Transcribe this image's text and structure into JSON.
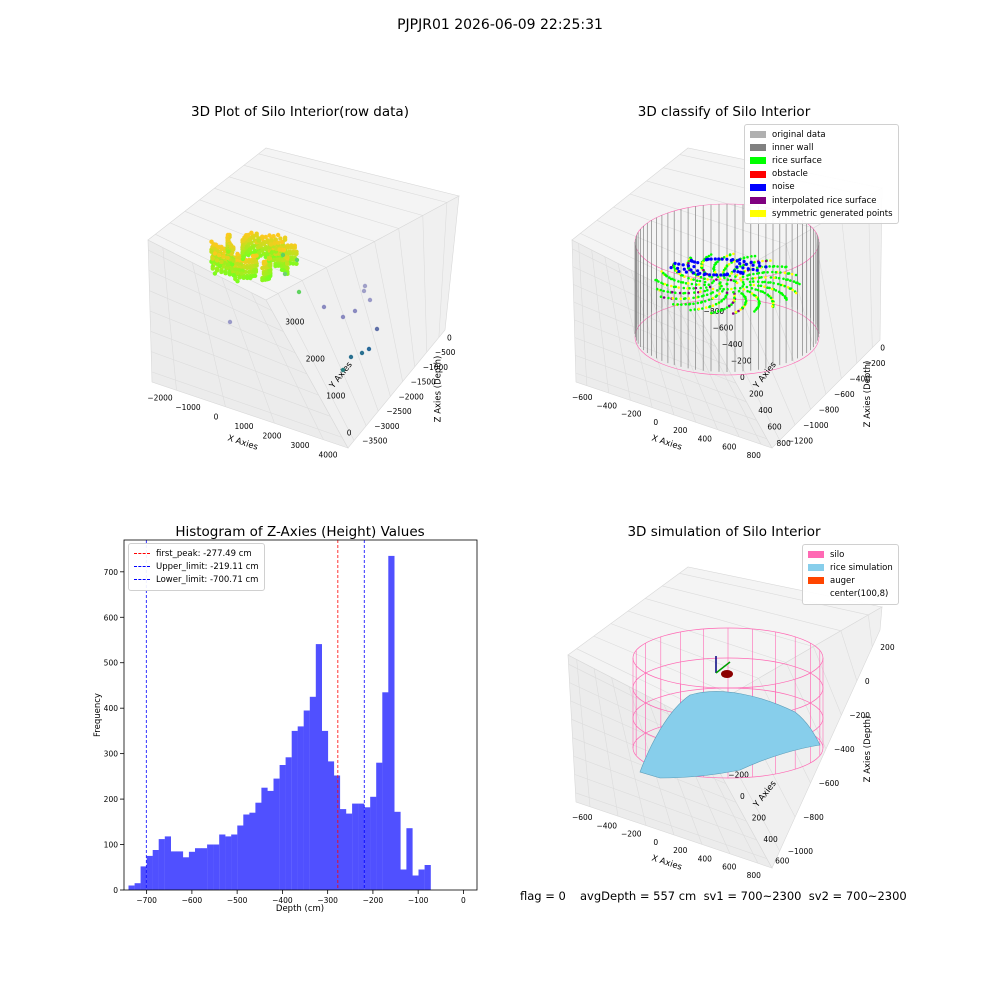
{
  "header": {
    "title": "PJPJR01 2026-06-09 22:25:31"
  },
  "colors": {
    "pane": "#f2f2f2",
    "grid": "#dcdcdc",
    "original": "#b0b0b0",
    "inner_wall": "#808080",
    "rice_surface": "#00ff00",
    "obstacle": "#ff0000",
    "noise": "#0000ff",
    "interpolated": "#800080",
    "symmetric": "#ffff00",
    "hist_bar": "#5050ff",
    "silo": "#ff69b4",
    "rice_sim": "#87ceeb",
    "auger": "#ff4500"
  },
  "plots": {
    "raw": {
      "title": "3D Plot of Silo Interior(row data)",
      "x_ticks": [
        "−2000",
        "−1000",
        "0",
        "1000",
        "2000",
        "3000",
        "4000"
      ],
      "y_ticks": [
        "0",
        "1000",
        "2000",
        "3000"
      ],
      "z_ticks": [
        "0",
        "−500",
        "−1000",
        "−1500",
        "−2000",
        "−2500",
        "−3000",
        "−3500"
      ],
      "xlabel": "X Axies",
      "ylabel": "Y Axies",
      "zlabel": "Z Axies (Depth)"
    },
    "classify": {
      "title": "3D classify of Silo Interior",
      "x_ticks": [
        "−600",
        "−400",
        "−200",
        "0",
        "200",
        "400",
        "600",
        "800"
      ],
      "y_ticks": [
        "800",
        "600",
        "400",
        "200",
        "0",
        "−200",
        "−400",
        "−600",
        "−800"
      ],
      "z_ticks": [
        "0",
        "−200",
        "−400",
        "−600",
        "−800",
        "−1000",
        "−1200"
      ],
      "xlabel": "X Axies",
      "ylabel": "Y Axies",
      "zlabel": "Z Axies (Depth)",
      "legend": [
        {
          "label": "original data",
          "color": "#b0b0b0"
        },
        {
          "label": "inner wall",
          "color": "#808080"
        },
        {
          "label": "rice surface",
          "color": "#00ff00"
        },
        {
          "label": "obstacle",
          "color": "#ff0000"
        },
        {
          "label": "noise",
          "color": "#0000ff"
        },
        {
          "label": "interpolated rice surface",
          "color": "#800080"
        },
        {
          "label": "symmetric generated points",
          "color": "#ffff00"
        }
      ]
    },
    "simulation": {
      "title": "3D simulation of Silo Interior",
      "x_ticks": [
        "−600",
        "−400",
        "−200",
        "0",
        "200",
        "400",
        "600",
        "800"
      ],
      "y_ticks": [
        "600",
        "400",
        "200",
        "0",
        "−200",
        "−400",
        "−600"
      ],
      "z_ticks": [
        "200",
        "0",
        "−200",
        "−400",
        "−600",
        "−800",
        "−1000"
      ],
      "xlabel": "X Axies",
      "ylabel": "Y Axies",
      "zlabel": "Z Axies (Depth)",
      "legend": [
        {
          "label": "silo",
          "color": "#ff69b4"
        },
        {
          "label": "rice simulation",
          "color": "#87ceeb"
        },
        {
          "label": "auger",
          "color": "#ff4500"
        },
        {
          "label": "center(100,8)",
          "color": "transparent"
        }
      ]
    }
  },
  "footer": {
    "flag": "flag = 0",
    "avg": "avgDepth = 557 cm  sv1 = 700~2300  sv2 = 700~2300"
  },
  "chart_data": {
    "type": "bar",
    "title": "Histogram of Z-Axies (Height) Values",
    "xlabel": "Depth (cm)",
    "ylabel": "Frequency",
    "xlim": [
      -750,
      30
    ],
    "ylim": [
      0,
      770
    ],
    "x_ticks": [
      -700,
      -600,
      -500,
      -400,
      -300,
      -200,
      -100,
      0
    ],
    "y_ticks": [
      0,
      100,
      200,
      300,
      400,
      500,
      600,
      700
    ],
    "bin_start": -740,
    "bin_width": 13.35,
    "values": [
      10,
      15,
      52,
      75,
      88,
      112,
      118,
      85,
      85,
      72,
      84,
      92,
      92,
      100,
      100,
      122,
      118,
      122,
      142,
      166,
      170,
      192,
      225,
      218,
      245,
      275,
      292,
      350,
      360,
      395,
      425,
      541,
      350,
      283,
      252,
      178,
      168,
      190,
      190,
      182,
      205,
      280,
      435,
      735,
      172,
      45,
      136,
      32,
      45,
      55
    ],
    "lines": [
      {
        "label": "first_peak: -277.49 cm",
        "x": -277.49,
        "color": "#ff0000"
      },
      {
        "label": "Upper_limit: -219.11 cm",
        "x": -219.11,
        "color": "#0000ff"
      },
      {
        "label": "Lower_limit: -700.71 cm",
        "x": -700.71,
        "color": "#0000ff"
      }
    ]
  }
}
